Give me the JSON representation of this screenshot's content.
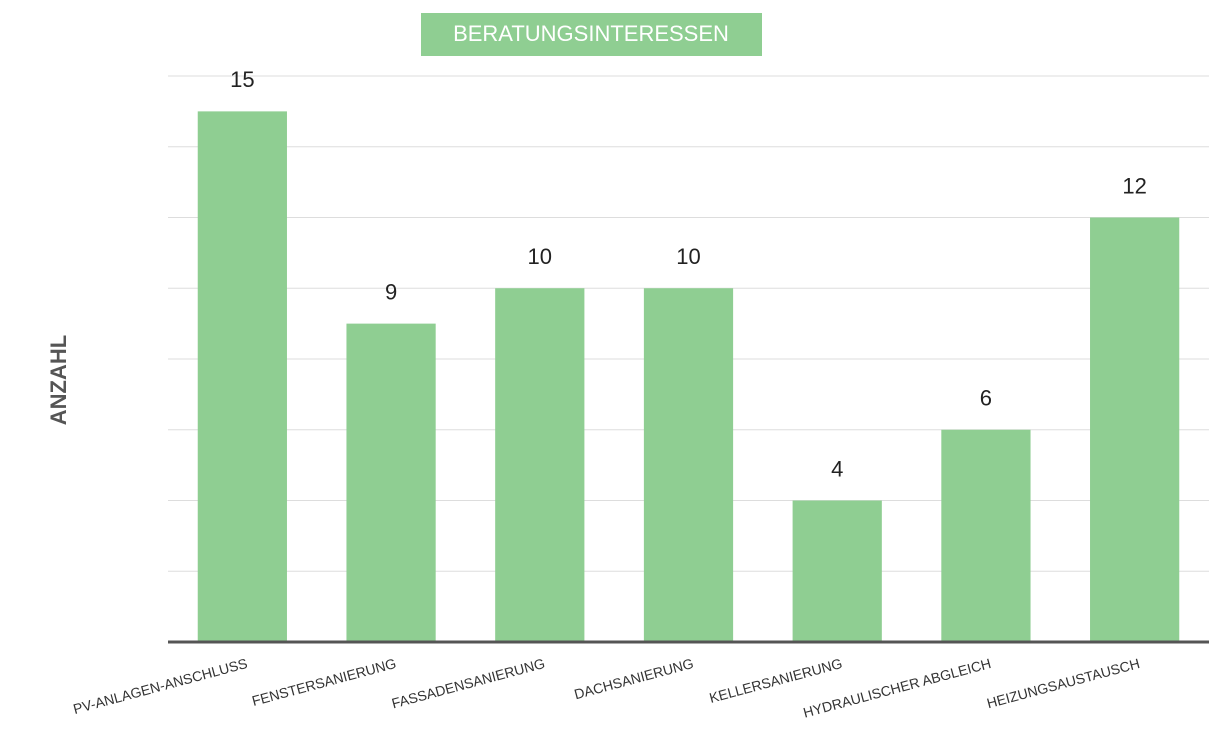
{
  "chart_data": {
    "type": "bar",
    "title": "BERATUNGSINTERESSEN",
    "y_label": "ANZAHL",
    "categories": [
      "PV-ANLAGEN-ANSCHLUSS",
      "FENSTERSANIERUNG",
      "FASSADENSANIERUNG",
      "DACHSANIERUNG",
      "KELLERSANIERUNG",
      "HYDRAULISCHER ABGLEICH",
      "HEIZUNGSAUSTAUSCH"
    ],
    "values": [
      15,
      9,
      10,
      10,
      4,
      6,
      12
    ],
    "color": "#8fce92",
    "ylim": [
      0,
      16
    ],
    "yticks": [
      0,
      2,
      4,
      6,
      8,
      10,
      12,
      14,
      16
    ],
    "grid": true
  }
}
